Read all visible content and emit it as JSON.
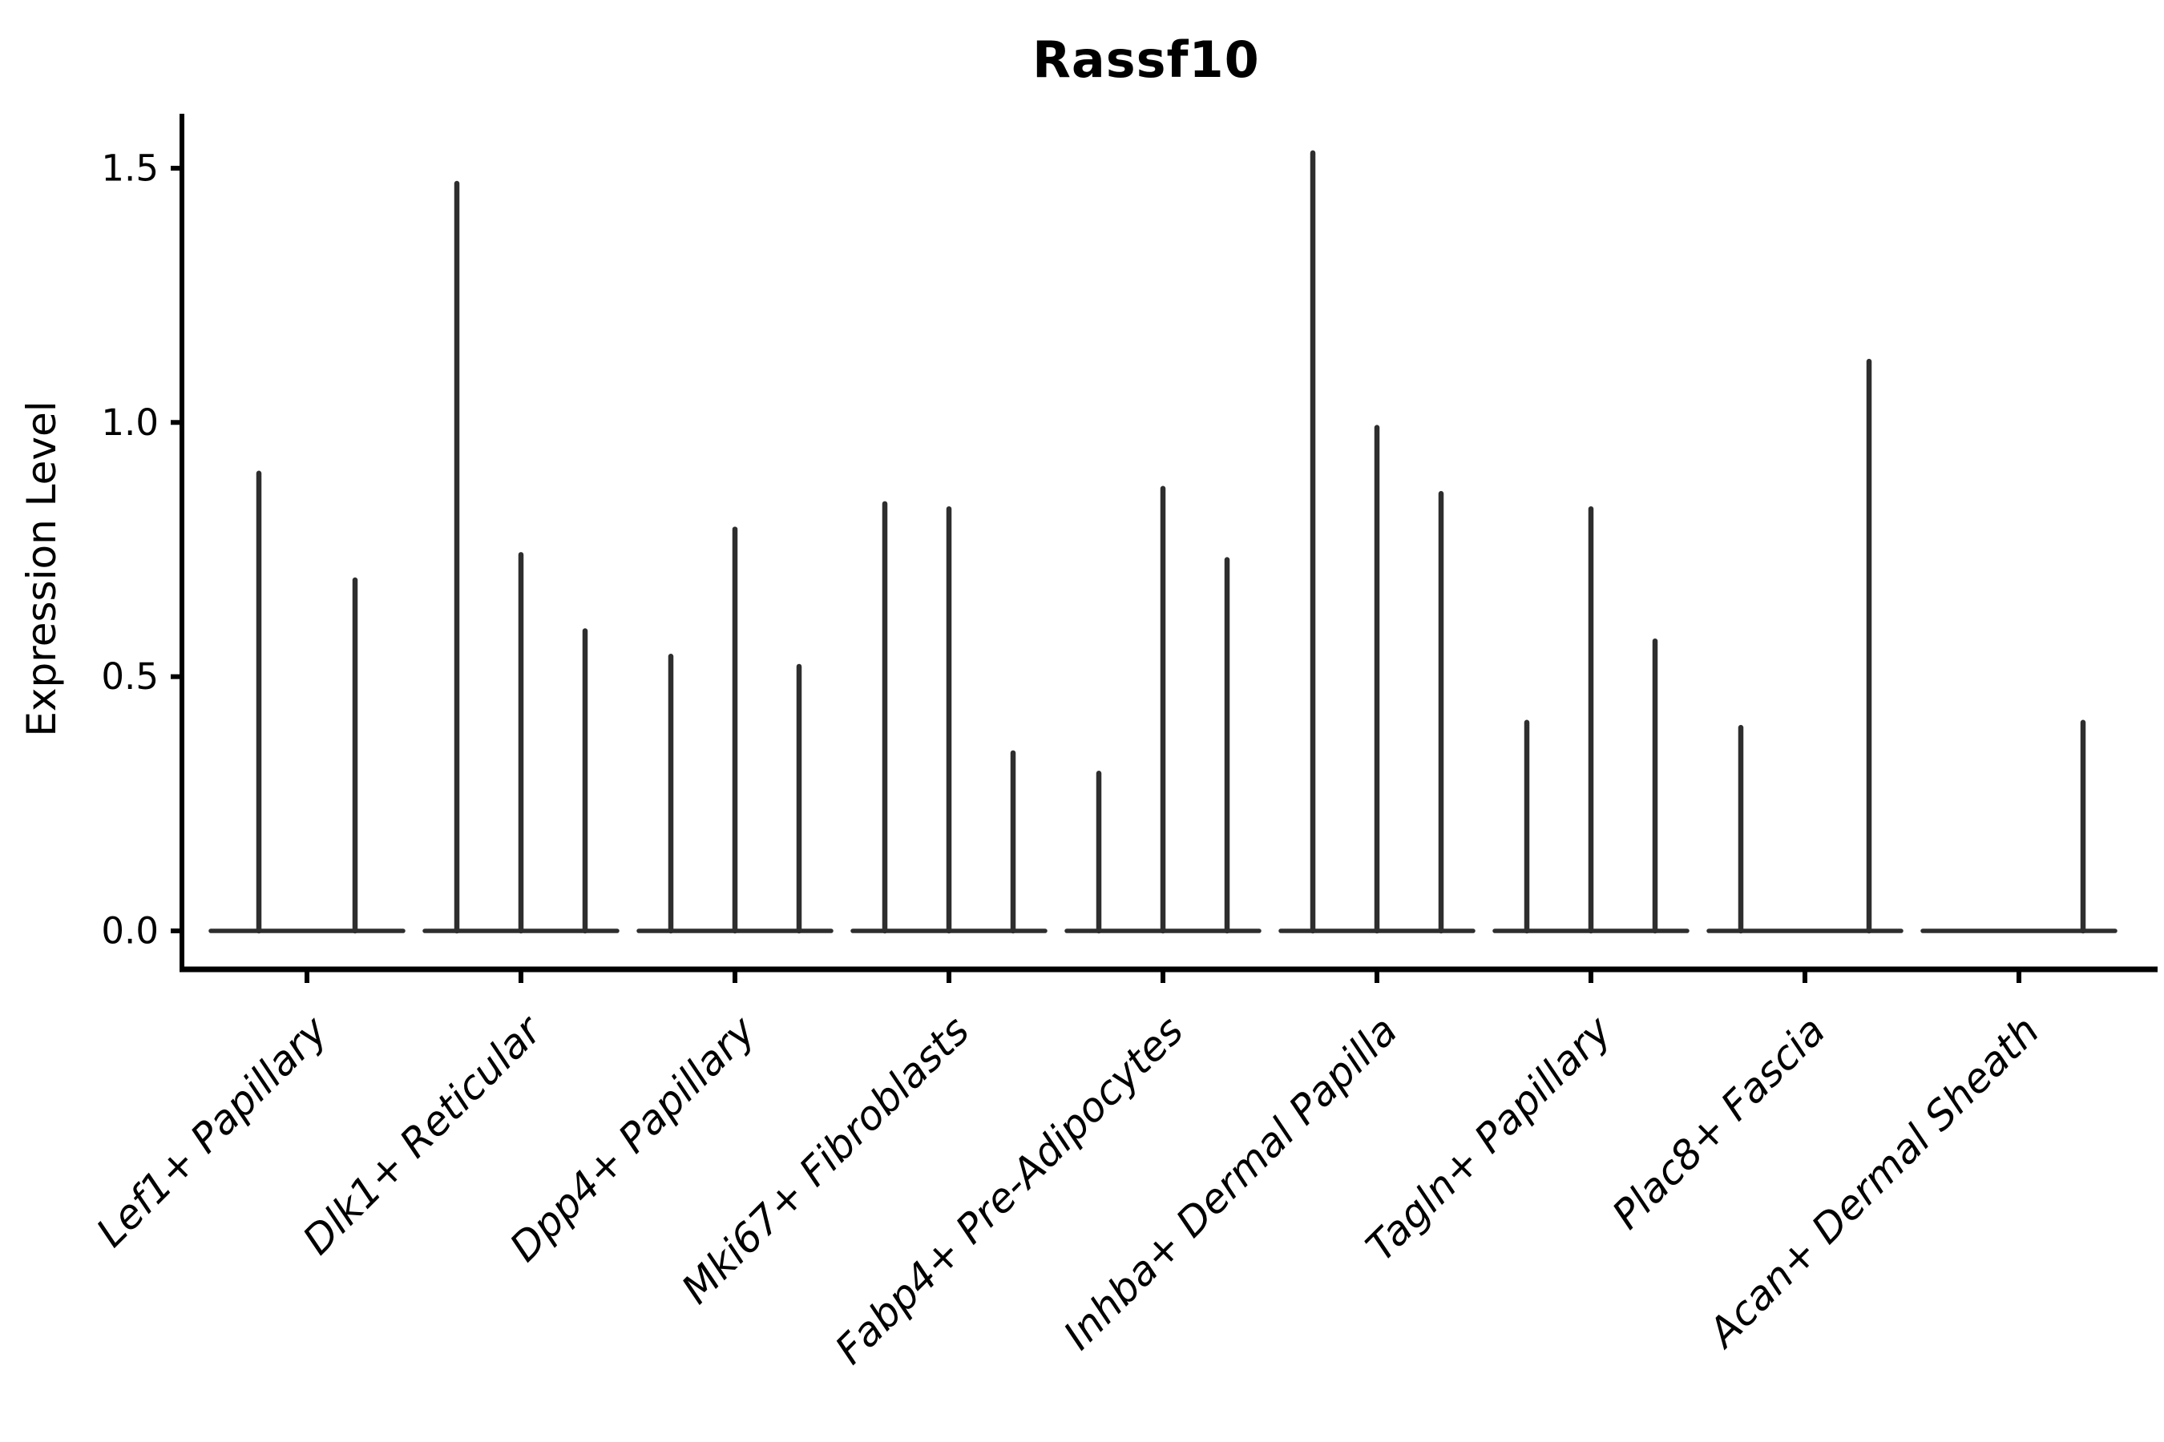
{
  "chart_data": {
    "type": "violin",
    "title": "Rassf10",
    "ylabel": "Expression Level",
    "xlabel": "",
    "ylim": [
      0,
      1.55
    ],
    "yticks": [
      0,
      0.5,
      1.0,
      1.5
    ],
    "ytick_labels": [
      "0.0",
      "0.5",
      "1.0",
      "1.5"
    ],
    "grid": false,
    "legend": "none",
    "axis_color": "#000000",
    "violin_color": "#2e2e2e",
    "categories": [
      "Lef1+ Papillary",
      "Dlk1+ Reticular",
      "Dpp4+ Papillary",
      "Mki67+ Fibroblasts",
      "Fabp4+ Pre-Adipocytes",
      "Inhba+ Dermal Papilla",
      "Tagln+ Papillary",
      "Plac8+ Fascia",
      "Acan+ Dermal Sheath"
    ],
    "groups": [
      {
        "label": "Lef1+ Papillary",
        "violin_max_values": [
          0.9,
          0.69
        ]
      },
      {
        "label": "Dlk1+ Reticular",
        "violin_max_values": [
          1.47,
          0.74,
          0.59
        ]
      },
      {
        "label": "Dpp4+ Papillary",
        "violin_max_values": [
          0.54,
          0.79,
          0.52
        ]
      },
      {
        "label": "Mki67+ Fibroblasts",
        "violin_max_values": [
          0.84,
          0.83,
          0.35
        ]
      },
      {
        "label": "Fabp4+ Pre-Adipocytes",
        "violin_max_values": [
          0.31,
          0.87,
          0.73
        ]
      },
      {
        "label": "Inhba+ Dermal Papilla",
        "violin_max_values": [
          1.53,
          0.99,
          0.86
        ]
      },
      {
        "label": "Tagln+ Papillary",
        "violin_max_values": [
          0.41,
          0.83,
          0.57
        ]
      },
      {
        "label": "Plac8+ Fascia",
        "violin_max_values": [
          0.4,
          0,
          1.12
        ]
      },
      {
        "label": "Acan+ Dermal Sheath",
        "violin_max_values": [
          0,
          0,
          0.41
        ]
      }
    ]
  }
}
